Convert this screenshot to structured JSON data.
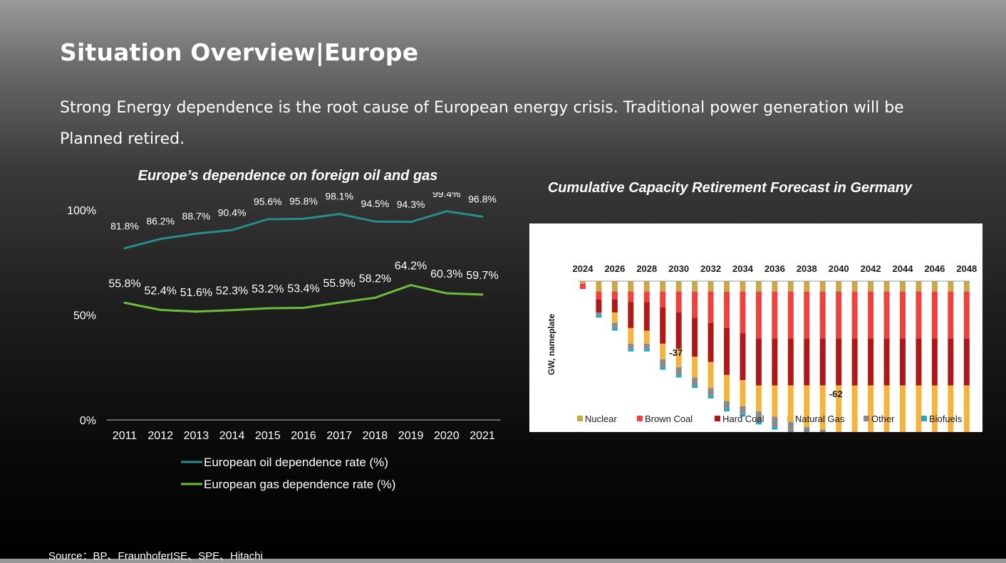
{
  "page": {
    "title": "Situation Overview|Europe",
    "subtitle": "Strong Energy dependence is the root cause of European energy crisis. Traditional power generation will be Planned retired.",
    "source": "Source：BP、FraunhoferISE、SPE、Hitachi"
  },
  "chart_data": [
    {
      "type": "line",
      "title": "Europe’s dependence on foreign oil and gas",
      "x": [
        "2011",
        "2012",
        "2013",
        "2014",
        "2015",
        "2016",
        "2017",
        "2018",
        "2019",
        "2020",
        "2021"
      ],
      "ylim": [
        0,
        100
      ],
      "yticks": [
        "0%",
        "50%",
        "100%"
      ],
      "grid": false,
      "legend_position": "bottom",
      "series": [
        {
          "name": "European oil dependence rate (%)",
          "color": "#2a8c8c",
          "values": [
            81.8,
            86.2,
            88.7,
            90.4,
            95.6,
            95.8,
            98.1,
            94.5,
            94.3,
            99.4,
            96.8
          ],
          "labels": [
            "81.8%",
            "86.2%",
            "88.7%",
            "90.4%",
            "95.6%",
            "95.8%",
            "98.1%",
            "94.5%",
            "94.3%",
            "99.4%",
            "96.8%"
          ]
        },
        {
          "name": "European gas dependence rate (%)",
          "color": "#6dbb3f",
          "values": [
            55.8,
            52.4,
            51.6,
            52.3,
            53.2,
            53.4,
            55.9,
            58.2,
            64.2,
            60.3,
            59.7
          ],
          "labels": [
            "55.8%",
            "52.4%",
            "51.6%",
            "52.3%",
            "53.2%",
            "53.4%",
            "55.9%",
            "58.2%",
            "64.2%",
            "60.3%",
            "59.7%"
          ]
        }
      ]
    },
    {
      "type": "bar",
      "stacked": true,
      "title": "Cumulative Capacity Retirement Forecast in Germany",
      "ylabel": "GW, nameplate",
      "x_tick_labels": [
        "2024",
        "2026",
        "2028",
        "2030",
        "2032",
        "2034",
        "2036",
        "2038",
        "2040",
        "2042",
        "2044",
        "2046",
        "2048"
      ],
      "categories": [
        "2024",
        "2025",
        "2026",
        "2027",
        "2028",
        "2029",
        "2030",
        "2031",
        "2032",
        "2033",
        "2034",
        "2035",
        "2036",
        "2037",
        "2038",
        "2039",
        "2040",
        "2041",
        "2042",
        "2043",
        "2044",
        "2045",
        "2046",
        "2047",
        "2048"
      ],
      "ylim": [
        -65,
        0
      ],
      "legend_position": "bottom",
      "annotations": [
        {
          "category": "2030",
          "text": "-37"
        },
        {
          "category": "2040",
          "text": "-62"
        }
      ],
      "series": [
        {
          "name": "Nuclear",
          "color": "#c9a84a",
          "values": [
            -1,
            -4,
            -4,
            -4,
            -4,
            -4,
            -4,
            -4,
            -4,
            -4,
            -4,
            -4,
            -4,
            -4,
            -4,
            -4,
            -4,
            -4,
            -4,
            -4,
            -4,
            -4,
            -4,
            -4,
            -4
          ]
        },
        {
          "name": "Brown Coal",
          "color": "#f04040",
          "values": [
            -2,
            -3,
            -3,
            -4,
            -4,
            -6,
            -8,
            -10,
            -12,
            -14,
            -16,
            -18,
            -18,
            -18,
            -18,
            -18,
            -18,
            -18,
            -18,
            -18,
            -18,
            -18,
            -18,
            -18,
            -18
          ]
        },
        {
          "name": "Hard Coal",
          "color": "#b01818",
          "values": [
            0,
            -5,
            -5,
            -10,
            -11,
            -14,
            -14,
            -15,
            -15,
            -18,
            -18,
            -18,
            -18,
            -18,
            -18,
            -18,
            -18,
            -18,
            -18,
            -18,
            -18,
            -18,
            -18,
            -18,
            -18
          ]
        },
        {
          "name": "Natural Gas",
          "color": "#f5b33e",
          "values": [
            0,
            0,
            -4,
            -6,
            -5,
            -6,
            -7,
            -8,
            -10,
            -10,
            -10,
            -10,
            -12,
            -14,
            -16,
            -17,
            -18,
            -18,
            -18,
            -19,
            -20,
            -20,
            -21,
            -21,
            -21
          ]
        },
        {
          "name": "Other",
          "color": "#8a8a8a",
          "values": [
            0,
            -1,
            -2,
            -2,
            -2,
            -3,
            -3,
            -3,
            -3,
            -3,
            -3,
            -4,
            -4,
            -4,
            -4,
            -4,
            -4,
            -4,
            -5,
            -5,
            -5,
            -5,
            -5,
            -5,
            -6
          ]
        },
        {
          "name": "Biofuels",
          "color": "#2aa8c8",
          "values": [
            0,
            -1,
            -1,
            -1,
            -1,
            -1,
            -1,
            -1,
            -1,
            -1,
            -1,
            -1,
            -1,
            -1,
            -1,
            -1,
            -1,
            -1,
            -1,
            -1,
            -1,
            -1,
            -1,
            -1,
            -1
          ]
        }
      ]
    }
  ]
}
